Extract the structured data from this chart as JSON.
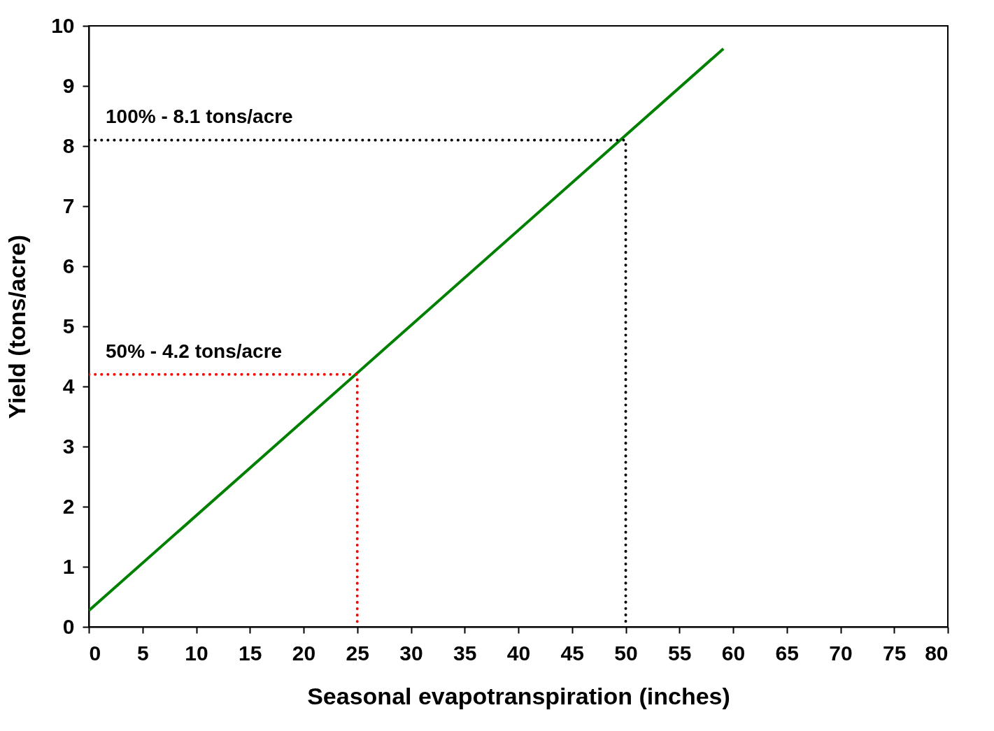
{
  "chart_data": {
    "type": "line",
    "xlabel": "Seasonal evapotranspiration (inches)",
    "ylabel": "Yield (tons/acre)",
    "xlim": [
      0,
      80
    ],
    "ylim": [
      0,
      10
    ],
    "xticks": [
      0,
      5,
      10,
      15,
      20,
      25,
      30,
      35,
      40,
      45,
      50,
      55,
      60,
      65,
      70,
      75,
      80
    ],
    "yticks": [
      0,
      1,
      2,
      3,
      4,
      5,
      6,
      7,
      8,
      9,
      10
    ],
    "series": [
      {
        "color": "#008000",
        "x": [
          0,
          59.1
        ],
        "values": [
          0.27,
          9.62
        ],
        "line_style": "solid"
      },
      {
        "color": "#000000",
        "x": [
          0,
          50,
          50
        ],
        "values": [
          8.1,
          8.1,
          0
        ],
        "line_style": "dotted"
      },
      {
        "color": "#ff0000",
        "x": [
          0,
          25,
          25
        ],
        "values": [
          4.2,
          4.2,
          0
        ],
        "line_style": "dotted"
      }
    ],
    "annotations": [
      {
        "text": "100% - 8.1 tons/acre",
        "x": 0,
        "y": 8.1
      },
      {
        "text": "50% - 4.2 tons/acre",
        "x": 0,
        "y": 4.2
      }
    ]
  }
}
